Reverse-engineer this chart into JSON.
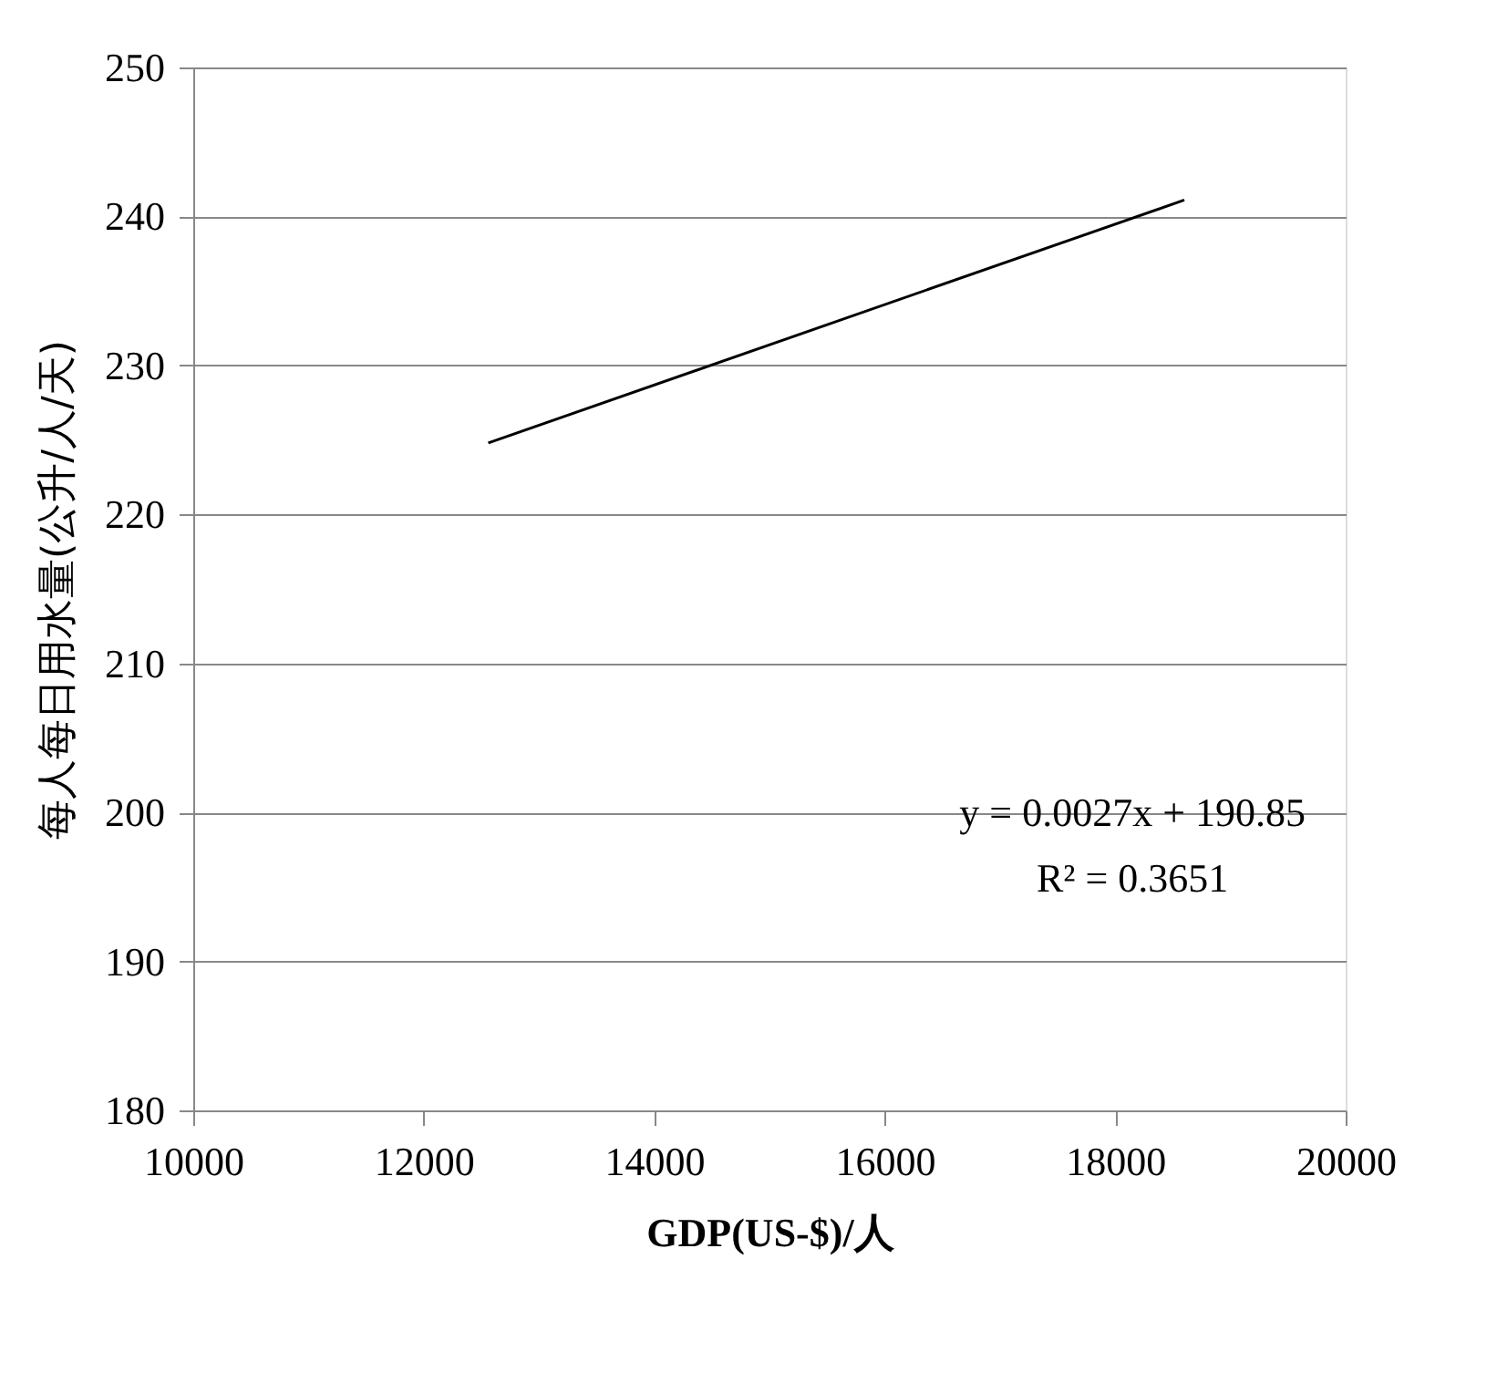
{
  "chart_data": {
    "type": "line",
    "xlabel": "GDP(US-$)/人",
    "ylabel": "每人每日用水量(公升/人/天)",
    "x": [
      12560,
      18600
    ],
    "series": [
      {
        "color": "#000000",
        "values": [
          224.8,
          241.1
        ]
      }
    ],
    "xlim": [
      10000,
      20000
    ],
    "xticks": [
      10000,
      12000,
      14000,
      16000,
      18000,
      20000
    ],
    "ylim": [
      180,
      250
    ],
    "yticks": [
      180,
      190,
      200,
      210,
      220,
      230,
      240,
      250
    ],
    "grid": "y",
    "marker": "none",
    "line_style": "solid",
    "annotations": [
      "y = 0.0027x + 190.85",
      "R² = 0.3651"
    ]
  }
}
